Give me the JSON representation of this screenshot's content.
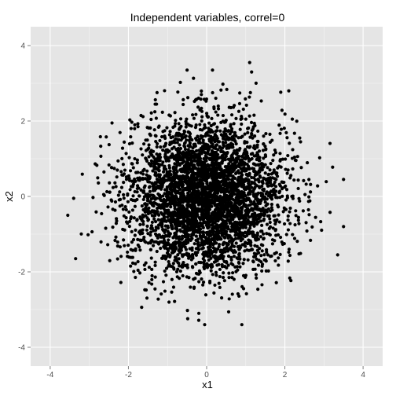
{
  "chart_data": {
    "type": "scatter",
    "title": "Independent variables, correl=0",
    "xlabel": "x1",
    "ylabel": "x2",
    "xlim": [
      -4.5,
      4.5
    ],
    "ylim": [
      -4.5,
      4.5
    ],
    "x_ticks": [
      -4,
      -2,
      0,
      2,
      4
    ],
    "y_ticks": [
      -4,
      -2,
      0,
      2,
      4
    ],
    "x_tick_labels": [
      "-4",
      "-2",
      "0",
      "2",
      "4"
    ],
    "y_tick_labels": [
      "-4",
      "-2",
      "0",
      "2",
      "4"
    ],
    "grid": true,
    "panel_background": "#e5e5e5",
    "grid_color": "#ffffff",
    "point_color": "#000000",
    "n_points": 4000,
    "correlation": 0,
    "distribution": "bivariate standard normal (mean 0, sd 1, independent)",
    "notable_points": [
      {
        "x": 3.5,
        "y": 0.45
      },
      {
        "x": 3.5,
        "y": -0.8
      },
      {
        "x": 3.35,
        "y": -1.55
      },
      {
        "x": -3.55,
        "y": -0.5
      },
      {
        "x": -3.4,
        "y": -0.05
      },
      {
        "x": -3.35,
        "y": -1.65
      },
      {
        "x": 1.1,
        "y": 3.55
      },
      {
        "x": 1.15,
        "y": 3.3
      },
      {
        "x": -0.5,
        "y": 3.35
      },
      {
        "x": 0.15,
        "y": 3.35
      },
      {
        "x": -0.05,
        "y": -3.4
      },
      {
        "x": 0.9,
        "y": -3.4
      },
      {
        "x": -0.2,
        "y": -3.1
      },
      {
        "x": 2.1,
        "y": 2.8
      }
    ]
  }
}
